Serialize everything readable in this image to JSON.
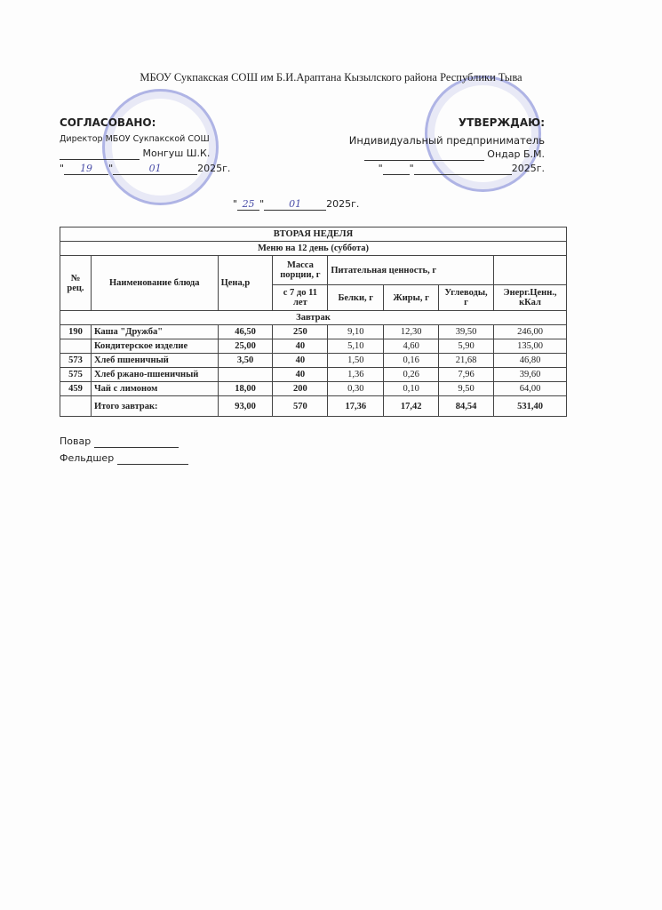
{
  "header": {
    "school": "МБОУ Сукпакская СОШ им Б.И.Араптана Кызылского района Республики Тыва"
  },
  "agreed": {
    "title": "СОГЛАСОВАНО:",
    "position": "Директор МБОУ Сукпакской СОШ",
    "name": "Монгуш Ш.К.",
    "day": "19",
    "month": "01",
    "year": "2025г."
  },
  "approve": {
    "title": "УТВЕРЖДАЮ:",
    "position": "Индивидуальный предприниматель",
    "name": "Ондар Б.М.",
    "year": "2025г."
  },
  "menu_date": {
    "day": "25",
    "month": "01",
    "year": "2025г."
  },
  "table": {
    "week": "ВТОРАЯ НЕДЕЛЯ",
    "day": "Меню на 12 день (суббота)",
    "headers": {
      "num": "№ рец.",
      "name": "Наименование блюда",
      "price": "Цена,р",
      "mass": "Масса порции, г",
      "nutrition": "Питательная ценность, г",
      "age": "с 7 до 11 лет",
      "protein": "Белки, г",
      "fat": "Жиры, г",
      "carbs": "Углеводы, г",
      "energy": "Энерг.Ценн., кКал"
    },
    "section": "Завтрак",
    "rows": [
      {
        "num": "190",
        "name": "Каша \"Дружба\"",
        "price": "46,50",
        "mass": "250",
        "protein": "9,10",
        "fat": "12,30",
        "carbs": "39,50",
        "energy": "246,00"
      },
      {
        "num": "",
        "name": "Кондитерское изделие",
        "price": "25,00",
        "mass": "40",
        "protein": "5,10",
        "fat": "4,60",
        "carbs": "5,90",
        "energy": "135,00"
      },
      {
        "num": "573",
        "name": "Хлеб пшеничный",
        "price": "3,50",
        "mass": "40",
        "protein": "1,50",
        "fat": "0,16",
        "carbs": "21,68",
        "energy": "46,80"
      },
      {
        "num": "575",
        "name": "Хлеб ржано-пшеничный",
        "price": "",
        "mass": "40",
        "protein": "1,36",
        "fat": "0,26",
        "carbs": "7,96",
        "energy": "39,60"
      },
      {
        "num": "459",
        "name": "Чай с лимоном",
        "price": "18,00",
        "mass": "200",
        "protein": "0,30",
        "fat": "0,10",
        "carbs": "9,50",
        "energy": "64,00"
      }
    ],
    "total": {
      "name": "Итого завтрак:",
      "price": "93,00",
      "mass": "570",
      "protein": "17,36",
      "fat": "17,42",
      "carbs": "84,54",
      "energy": "531,40"
    }
  },
  "signatures": {
    "cook": "Повар",
    "medic": "Фельдшер"
  }
}
